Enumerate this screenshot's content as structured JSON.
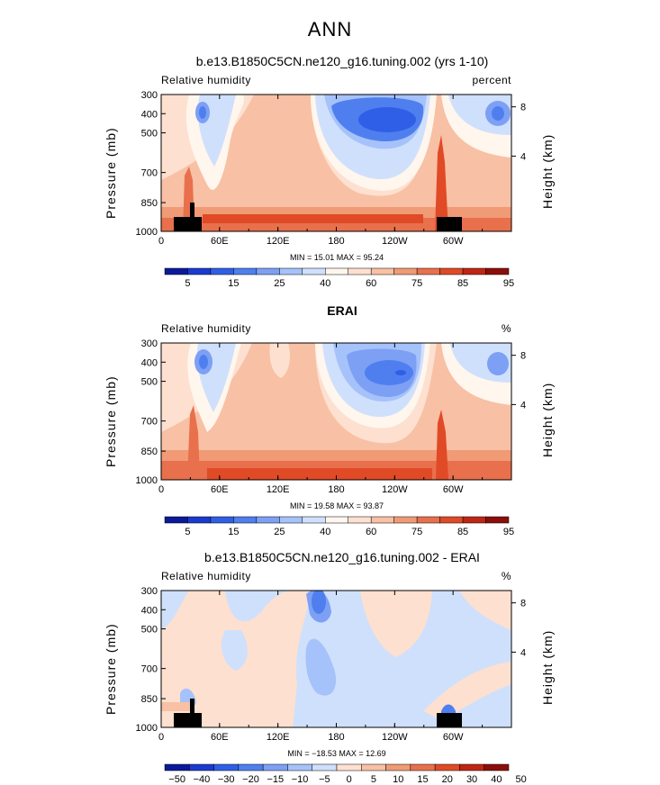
{
  "figure": {
    "title": "ANN"
  },
  "colors": {
    "abs_palette": [
      "#0a1a9a",
      "#1a3bd0",
      "#2f5fe6",
      "#4f7fef",
      "#7da0f5",
      "#a6c2fa",
      "#cfe0fc",
      "#fff6ee",
      "#fde0cf",
      "#f8c0a4",
      "#f09a76",
      "#e8704c",
      "#e04a26",
      "#bf2614",
      "#8c0e0a"
    ],
    "diff_palette": [
      "#0a1a9a",
      "#1a3bd0",
      "#2f5fe6",
      "#4f7fef",
      "#7da0f5",
      "#a6c2fa",
      "#cfe0fc",
      "#fde0cf",
      "#f8c0a4",
      "#f09a76",
      "#e8704c",
      "#e04a26",
      "#bf2614",
      "#8c0e0a"
    ]
  },
  "panels": [
    {
      "title": "b.e13.B1850C5CN.ne120_g16.tuning.002 (yrs 1-10)",
      "variable": "Relative humidity",
      "units": "percent",
      "ylabel_left": "Pressure (mb)",
      "ylabel_right": "Height (km)",
      "minmax": "MIN =   15.01   MAX =   95.24",
      "colorbar_labels": [
        "5",
        "15",
        "25",
        "40",
        "60",
        "75",
        "85",
        "95"
      ]
    },
    {
      "title": "ERAI",
      "variable": "Relative humidity",
      "units": "%",
      "ylabel_left": "Pressure (mb)",
      "ylabel_right": "Height (km)",
      "minmax": "MIN =   19.58   MAX =   93.87",
      "colorbar_labels": [
        "5",
        "15",
        "25",
        "40",
        "60",
        "75",
        "85",
        "95"
      ]
    },
    {
      "title": "b.e13.B1850C5CN.ne120_g16.tuning.002 - ERAI",
      "variable": "Relative humidity",
      "units": "%",
      "ylabel_left": "Pressure (mb)",
      "ylabel_right": "Height (km)",
      "minmax": "MIN = −18.53   MAX =   12.69",
      "colorbar_labels": [
        "−50",
        "−40",
        "−30",
        "−20",
        "−15",
        "−10",
        "−5",
        "0",
        "5",
        "10",
        "15",
        "20",
        "30",
        "40",
        "50"
      ]
    }
  ],
  "chart_data": [
    {
      "type": "heatmap",
      "title": "b.e13.B1850C5CN.ne120_g16.tuning.002 (yrs 1-10)",
      "xlabel": "",
      "ylabel": "Pressure (mb)",
      "y2label": "Height (km)",
      "x_ticks": [
        "0",
        "60E",
        "120E",
        "180",
        "120W",
        "60W"
      ],
      "y_ticks": [
        "300",
        "400",
        "500",
        "700",
        "850",
        "1000"
      ],
      "y2_ticks": [
        "8",
        "4"
      ],
      "xlim": [
        0,
        360
      ],
      "ylim": [
        1000,
        300
      ],
      "levels": [
        5,
        10,
        15,
        20,
        25,
        30,
        40,
        50,
        60,
        70,
        75,
        80,
        85,
        90,
        95
      ],
      "min": 15.01,
      "max": 95.24
    },
    {
      "type": "heatmap",
      "title": "ERAI",
      "xlabel": "",
      "ylabel": "Pressure (mb)",
      "y2label": "Height (km)",
      "x_ticks": [
        "0",
        "60E",
        "120E",
        "180",
        "120W",
        "60W"
      ],
      "y_ticks": [
        "300",
        "400",
        "500",
        "700",
        "850",
        "1000"
      ],
      "y2_ticks": [
        "8",
        "4"
      ],
      "xlim": [
        0,
        360
      ],
      "ylim": [
        1000,
        300
      ],
      "levels": [
        5,
        10,
        15,
        20,
        25,
        30,
        40,
        50,
        60,
        70,
        75,
        80,
        85,
        90,
        95
      ],
      "min": 19.58,
      "max": 93.87
    },
    {
      "type": "heatmap",
      "title": "b.e13.B1850C5CN.ne120_g16.tuning.002 - ERAI",
      "xlabel": "",
      "ylabel": "Pressure (mb)",
      "y2label": "Height (km)",
      "x_ticks": [
        "0",
        "60E",
        "120E",
        "180",
        "120W",
        "60W"
      ],
      "y_ticks": [
        "300",
        "400",
        "500",
        "700",
        "850",
        "1000"
      ],
      "y2_ticks": [
        "8",
        "4"
      ],
      "xlim": [
        0,
        360
      ],
      "ylim": [
        1000,
        300
      ],
      "levels": [
        -50,
        -40,
        -30,
        -20,
        -15,
        -10,
        -5,
        0,
        5,
        10,
        15,
        20,
        30,
        40,
        50
      ],
      "min": -18.53,
      "max": 12.69
    }
  ]
}
